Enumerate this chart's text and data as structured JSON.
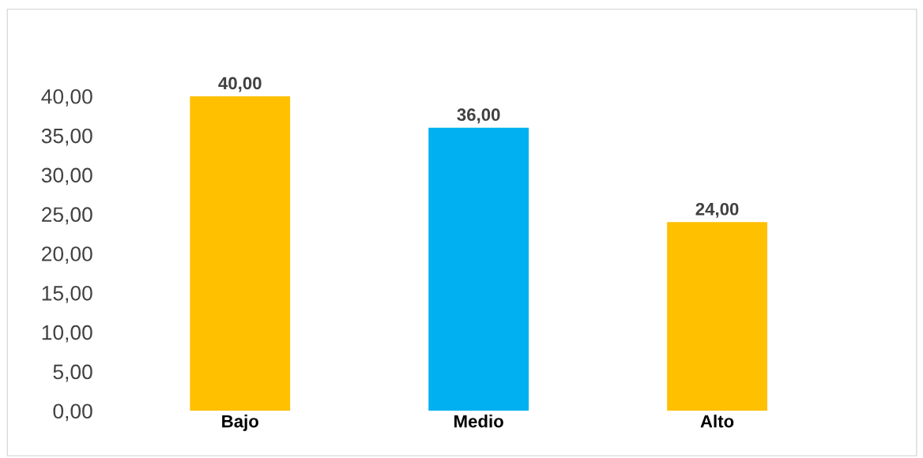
{
  "chart_data": {
    "type": "bar",
    "categories": [
      "Bajo",
      "Medio",
      "Alto"
    ],
    "values": [
      40,
      36,
      24
    ],
    "colors": [
      "#ffc000",
      "#00b0f0",
      "#ffc000"
    ],
    "value_labels": [
      "40,00",
      "36,00",
      "24,00"
    ],
    "ylim": [
      0,
      40
    ],
    "yticks": [
      {
        "value": 0,
        "label": "0,00"
      },
      {
        "value": 5,
        "label": "5,00"
      },
      {
        "value": 10,
        "label": "10,00"
      },
      {
        "value": 15,
        "label": "15,00"
      },
      {
        "value": 20,
        "label": "20,00"
      },
      {
        "value": 25,
        "label": "25,00"
      },
      {
        "value": 30,
        "label": "30,00"
      },
      {
        "value": 35,
        "label": "35,00"
      },
      {
        "value": 40,
        "label": "40,00"
      }
    ],
    "grid": false,
    "legend": false
  }
}
